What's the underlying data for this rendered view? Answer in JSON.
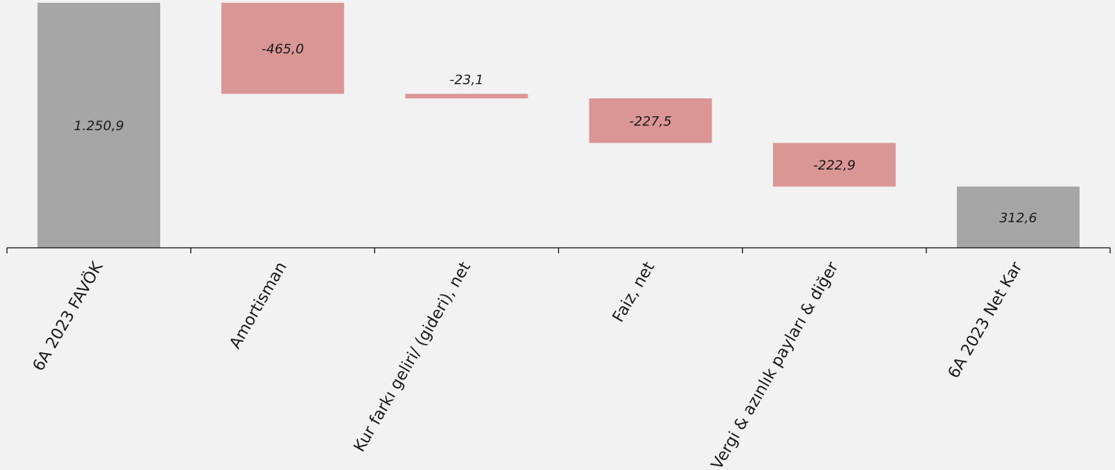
{
  "chart_data": {
    "type": "bar",
    "subtype": "waterfall",
    "categories": [
      "6A 2023 FAVÖK",
      "Amortisman",
      "Kur farkı geliri/ (gideri), net",
      "Faiz, net",
      "Vergi & azınlık payları & diğer",
      "6A 2023 Net Kar"
    ],
    "values": [
      1250.9,
      -465.0,
      -23.1,
      -227.5,
      -222.9,
      312.6
    ],
    "value_labels": [
      "1.250,9",
      "-465,0",
      "-23,1",
      "-227,5",
      "-222,9",
      "312,6"
    ],
    "bar_kinds": [
      "total",
      "delta",
      "delta",
      "delta",
      "delta",
      "total"
    ],
    "colors": {
      "total": "#a6a6a6",
      "decrease": "#da9694",
      "axis": "#000000",
      "background": "#f2f2f2"
    },
    "ylim": [
      0,
      1250.9
    ],
    "grid": false,
    "legend": "none",
    "title": "",
    "xlabel": "",
    "ylabel": ""
  }
}
